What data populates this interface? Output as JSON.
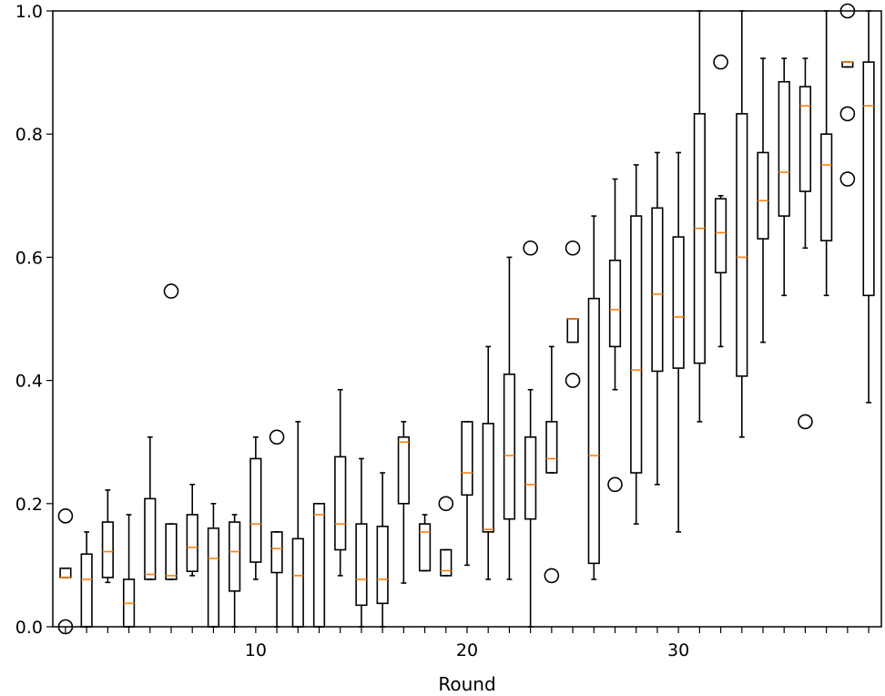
{
  "chart_data": {
    "type": "box",
    "title": "",
    "xlabel": "Round",
    "ylabel": "",
    "xlim": [
      0.4,
      39.6
    ],
    "ylim": [
      0.0,
      1.0
    ],
    "x_ticks": [
      10,
      20,
      30
    ],
    "y_ticks": [
      0.0,
      0.2,
      0.4,
      0.6,
      0.8,
      1.0
    ],
    "y_tick_labels": [
      "0.0",
      "0.2",
      "0.4",
      "0.6",
      "0.8",
      "1.0"
    ],
    "grid": false,
    "colors": {
      "box": "#000000",
      "median": "#ff7f0e",
      "flier": "#000000"
    },
    "boxes": [
      {
        "round": 1,
        "wl": 0.08,
        "q1": 0.08,
        "med": 0.08,
        "q3": 0.095,
        "wh": 0.095,
        "fliers": [
          0.18,
          0.0
        ]
      },
      {
        "round": 2,
        "wl": 0.0,
        "q1": 0.0,
        "med": 0.077,
        "q3": 0.118,
        "wh": 0.154,
        "fliers": []
      },
      {
        "round": 3,
        "wl": 0.072,
        "q1": 0.08,
        "med": 0.122,
        "q3": 0.17,
        "wh": 0.222,
        "fliers": []
      },
      {
        "round": 4,
        "wl": 0.0,
        "q1": 0.0,
        "med": 0.038,
        "q3": 0.077,
        "wh": 0.182,
        "fliers": []
      },
      {
        "round": 5,
        "wl": 0.077,
        "q1": 0.077,
        "med": 0.085,
        "q3": 0.208,
        "wh": 0.308,
        "fliers": []
      },
      {
        "round": 6,
        "wl": 0.077,
        "q1": 0.077,
        "med": 0.083,
        "q3": 0.167,
        "wh": 0.167,
        "fliers": [
          0.545
        ]
      },
      {
        "round": 7,
        "wl": 0.083,
        "q1": 0.09,
        "med": 0.129,
        "q3": 0.182,
        "wh": 0.231,
        "fliers": []
      },
      {
        "round": 8,
        "wl": 0.0,
        "q1": 0.0,
        "med": 0.111,
        "q3": 0.16,
        "wh": 0.2,
        "fliers": []
      },
      {
        "round": 9,
        "wl": 0.0,
        "q1": 0.058,
        "med": 0.122,
        "q3": 0.17,
        "wh": 0.182,
        "fliers": []
      },
      {
        "round": 10,
        "wl": 0.077,
        "q1": 0.105,
        "med": 0.167,
        "q3": 0.273,
        "wh": 0.308,
        "fliers": []
      },
      {
        "round": 11,
        "wl": 0.0,
        "q1": 0.088,
        "med": 0.127,
        "q3": 0.154,
        "wh": 0.154,
        "fliers": [
          0.308
        ]
      },
      {
        "round": 12,
        "wl": 0.0,
        "q1": 0.0,
        "med": 0.083,
        "q3": 0.143,
        "wh": 0.333,
        "fliers": []
      },
      {
        "round": 13,
        "wl": 0.0,
        "q1": 0.0,
        "med": 0.182,
        "q3": 0.2,
        "wh": 0.2,
        "fliers": []
      },
      {
        "round": 14,
        "wl": 0.083,
        "q1": 0.125,
        "med": 0.167,
        "q3": 0.276,
        "wh": 0.385,
        "fliers": []
      },
      {
        "round": 15,
        "wl": 0.0,
        "q1": 0.035,
        "med": 0.077,
        "q3": 0.167,
        "wh": 0.273,
        "fliers": []
      },
      {
        "round": 16,
        "wl": 0.0,
        "q1": 0.038,
        "med": 0.077,
        "q3": 0.163,
        "wh": 0.25,
        "fliers": []
      },
      {
        "round": 17,
        "wl": 0.071,
        "q1": 0.2,
        "med": 0.3,
        "q3": 0.308,
        "wh": 0.333,
        "fliers": []
      },
      {
        "round": 18,
        "wl": 0.091,
        "q1": 0.091,
        "med": 0.154,
        "q3": 0.167,
        "wh": 0.182,
        "fliers": []
      },
      {
        "round": 19,
        "wl": 0.083,
        "q1": 0.083,
        "med": 0.091,
        "q3": 0.125,
        "wh": 0.125,
        "fliers": [
          0.2
        ]
      },
      {
        "round": 20,
        "wl": 0.1,
        "q1": 0.214,
        "med": 0.25,
        "q3": 0.333,
        "wh": 0.333,
        "fliers": []
      },
      {
        "round": 21,
        "wl": 0.077,
        "q1": 0.154,
        "med": 0.158,
        "q3": 0.33,
        "wh": 0.455,
        "fliers": []
      },
      {
        "round": 22,
        "wl": 0.077,
        "q1": 0.175,
        "med": 0.278,
        "q3": 0.41,
        "wh": 0.6,
        "fliers": []
      },
      {
        "round": 23,
        "wl": 0.0,
        "q1": 0.175,
        "med": 0.231,
        "q3": 0.308,
        "wh": 0.385,
        "fliers": [
          0.615
        ]
      },
      {
        "round": 24,
        "wl": 0.25,
        "q1": 0.25,
        "med": 0.273,
        "q3": 0.333,
        "wh": 0.455,
        "fliers": [
          0.083
        ]
      },
      {
        "round": 25,
        "wl": 0.462,
        "q1": 0.462,
        "med": 0.5,
        "q3": 0.5,
        "wh": 0.5,
        "fliers": [
          0.615,
          0.4
        ]
      },
      {
        "round": 26,
        "wl": 0.077,
        "q1": 0.103,
        "med": 0.278,
        "q3": 0.533,
        "wh": 0.667,
        "fliers": []
      },
      {
        "round": 27,
        "wl": 0.385,
        "q1": 0.455,
        "med": 0.515,
        "q3": 0.595,
        "wh": 0.727,
        "fliers": [
          0.231
        ]
      },
      {
        "round": 28,
        "wl": 0.167,
        "q1": 0.25,
        "med": 0.417,
        "q3": 0.667,
        "wh": 0.75,
        "fliers": []
      },
      {
        "round": 29,
        "wl": 0.231,
        "q1": 0.415,
        "med": 0.54,
        "q3": 0.68,
        "wh": 0.77,
        "fliers": []
      },
      {
        "round": 30,
        "wl": 0.154,
        "q1": 0.42,
        "med": 0.503,
        "q3": 0.633,
        "wh": 0.77,
        "fliers": []
      },
      {
        "round": 31,
        "wl": 0.333,
        "q1": 0.428,
        "med": 0.647,
        "q3": 0.833,
        "wh": 1.0,
        "fliers": []
      },
      {
        "round": 32,
        "wl": 0.455,
        "q1": 0.575,
        "med": 0.64,
        "q3": 0.695,
        "wh": 0.7,
        "fliers": [
          0.917
        ]
      },
      {
        "round": 33,
        "wl": 0.308,
        "q1": 0.407,
        "med": 0.6,
        "q3": 0.833,
        "wh": 1.0,
        "fliers": []
      },
      {
        "round": 34,
        "wl": 0.462,
        "q1": 0.63,
        "med": 0.692,
        "q3": 0.77,
        "wh": 0.923,
        "fliers": []
      },
      {
        "round": 35,
        "wl": 0.538,
        "q1": 0.667,
        "med": 0.738,
        "q3": 0.885,
        "wh": 0.923,
        "fliers": []
      },
      {
        "round": 36,
        "wl": 0.615,
        "q1": 0.707,
        "med": 0.846,
        "q3": 0.877,
        "wh": 0.923,
        "fliers": [
          0.333
        ]
      },
      {
        "round": 37,
        "wl": 0.538,
        "q1": 0.627,
        "med": 0.75,
        "q3": 0.8,
        "wh": 1.0,
        "fliers": []
      },
      {
        "round": 38,
        "wl": 0.909,
        "q1": 0.909,
        "med": 0.917,
        "q3": 0.917,
        "wh": 0.917,
        "fliers": [
          1.0,
          0.833,
          0.727
        ]
      },
      {
        "round": 39,
        "wl": 0.364,
        "q1": 0.538,
        "med": 0.846,
        "q3": 0.917,
        "wh": 1.0,
        "fliers": []
      }
    ]
  }
}
